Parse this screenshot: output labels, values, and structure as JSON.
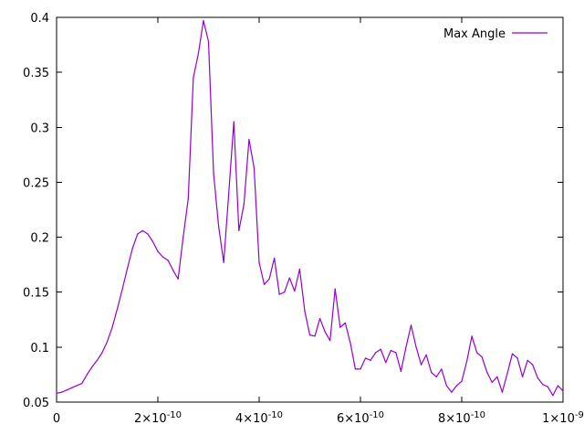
{
  "chart_data": {
    "type": "line",
    "title": "",
    "xlabel": "",
    "ylabel": "",
    "xlim": [
      0,
      1e-09
    ],
    "ylim": [
      0.05,
      0.4
    ],
    "grid": false,
    "legend_position": "top-right",
    "x_ticks": [
      {
        "value": 0,
        "mantissa": "0",
        "exp": ""
      },
      {
        "value": 2e-10,
        "mantissa": "2×10",
        "exp": "-10"
      },
      {
        "value": 4e-10,
        "mantissa": "4×10",
        "exp": "-10"
      },
      {
        "value": 6e-10,
        "mantissa": "6×10",
        "exp": "-10"
      },
      {
        "value": 8e-10,
        "mantissa": "8×10",
        "exp": "-10"
      },
      {
        "value": 1e-09,
        "mantissa": "1×10",
        "exp": "-9"
      }
    ],
    "y_ticks": [
      {
        "value": 0.05,
        "label": "0.05"
      },
      {
        "value": 0.1,
        "label": "0.1"
      },
      {
        "value": 0.15,
        "label": "0.15"
      },
      {
        "value": 0.2,
        "label": "0.2"
      },
      {
        "value": 0.25,
        "label": "0.25"
      },
      {
        "value": 0.3,
        "label": "0.3"
      },
      {
        "value": 0.35,
        "label": "0.35"
      },
      {
        "value": 0.4,
        "label": "0.4"
      }
    ],
    "series": [
      {
        "name": "Max Angle",
        "color": "#9400d3",
        "x": [
          0,
          1e-11,
          2e-11,
          3e-11,
          4e-11,
          5e-11,
          6e-11,
          7e-11,
          8e-11,
          9e-11,
          1e-10,
          1.1e-10,
          1.2e-10,
          1.3e-10,
          1.4e-10,
          1.5e-10,
          1.6e-10,
          1.7e-10,
          1.8e-10,
          1.9e-10,
          2e-10,
          2.1e-10,
          2.2e-10,
          2.3e-10,
          2.4e-10,
          2.5e-10,
          2.6e-10,
          2.7e-10,
          2.8e-10,
          2.9e-10,
          3e-10,
          3.1e-10,
          3.2e-10,
          3.3e-10,
          3.4e-10,
          3.5e-10,
          3.6e-10,
          3.7e-10,
          3.8e-10,
          3.9e-10,
          4e-10,
          4.1e-10,
          4.2e-10,
          4.3e-10,
          4.4e-10,
          4.5e-10,
          4.6e-10,
          4.7e-10,
          4.8e-10,
          4.9e-10,
          5e-10,
          5.1e-10,
          5.2e-10,
          5.3e-10,
          5.4e-10,
          5.5e-10,
          5.6e-10,
          5.7e-10,
          5.8e-10,
          5.9e-10,
          6e-10,
          6.1e-10,
          6.2e-10,
          6.3e-10,
          6.4e-10,
          6.5e-10,
          6.6e-10,
          6.7e-10,
          6.8e-10,
          6.9e-10,
          7e-10,
          7.1e-10,
          7.2e-10,
          7.3e-10,
          7.4e-10,
          7.5e-10,
          7.6e-10,
          7.7e-10,
          7.8e-10,
          7.9e-10,
          8e-10,
          8.1e-10,
          8.2e-10,
          8.3e-10,
          8.4e-10,
          8.5e-10,
          8.6e-10,
          8.7e-10,
          8.8e-10,
          8.9e-10,
          9e-10,
          9.1e-10,
          9.2e-10,
          9.3e-10,
          9.4e-10,
          9.5e-10,
          9.6e-10,
          9.7e-10,
          9.8e-10,
          9.9e-10,
          1e-09
        ],
        "y": [
          0.058,
          0.059,
          0.061,
          0.063,
          0.065,
          0.067,
          0.075,
          0.082,
          0.088,
          0.095,
          0.105,
          0.118,
          0.135,
          0.153,
          0.172,
          0.19,
          0.203,
          0.206,
          0.203,
          0.196,
          0.187,
          0.182,
          0.179,
          0.17,
          0.162,
          0.2,
          0.235,
          0.345,
          0.367,
          0.397,
          0.378,
          0.258,
          0.21,
          0.177,
          0.24,
          0.305,
          0.206,
          0.23,
          0.289,
          0.263,
          0.177,
          0.157,
          0.162,
          0.181,
          0.148,
          0.15,
          0.163,
          0.151,
          0.171,
          0.133,
          0.111,
          0.11,
          0.126,
          0.114,
          0.106,
          0.153,
          0.118,
          0.122,
          0.104,
          0.08,
          0.08,
          0.09,
          0.088,
          0.095,
          0.098,
          0.086,
          0.097,
          0.095,
          0.078,
          0.1,
          0.12,
          0.1,
          0.084,
          0.093,
          0.077,
          0.073,
          0.08,
          0.065,
          0.059,
          0.065,
          0.069,
          0.087,
          0.11,
          0.095,
          0.091,
          0.077,
          0.068,
          0.073,
          0.059,
          0.076,
          0.094,
          0.09,
          0.073,
          0.088,
          0.084,
          0.072,
          0.066,
          0.064,
          0.056,
          0.065,
          0.06
        ]
      }
    ]
  }
}
